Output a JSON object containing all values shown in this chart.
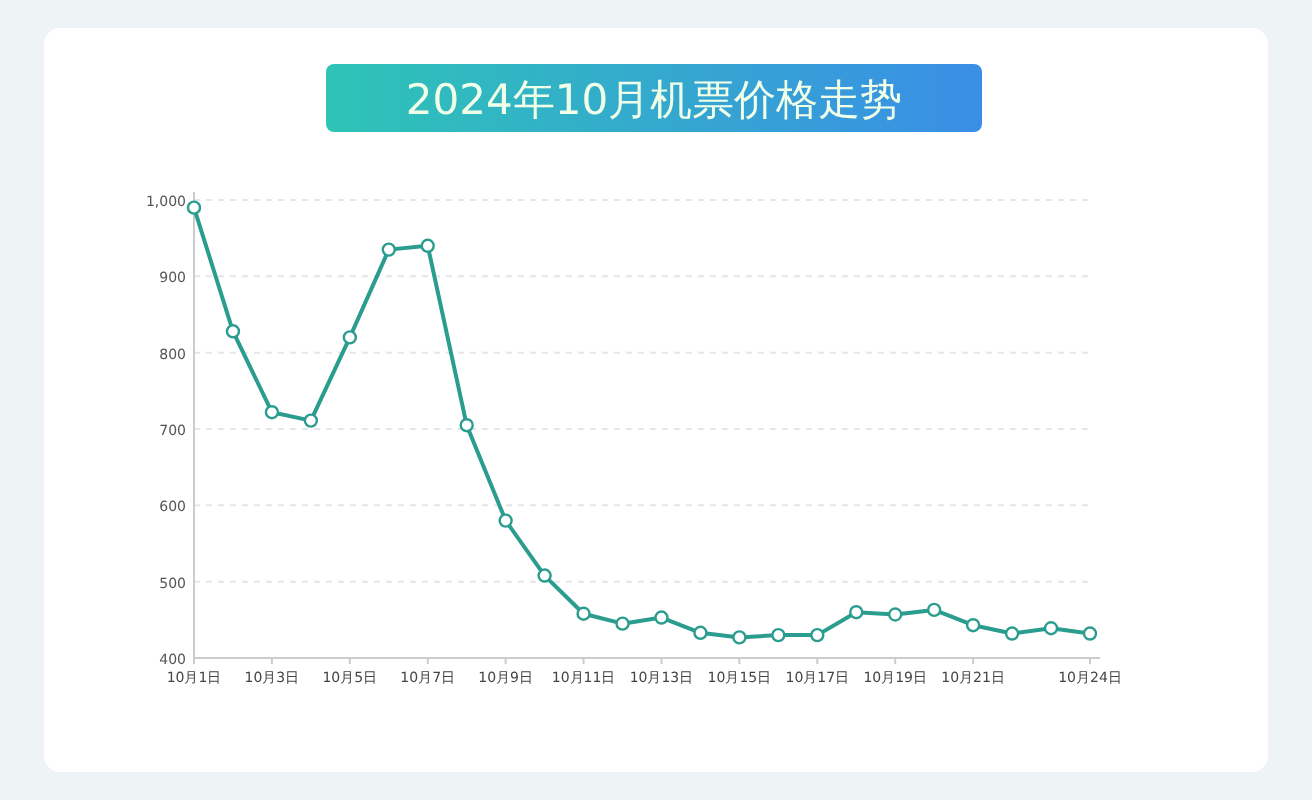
{
  "chart_data": {
    "type": "line",
    "title": "2024年10月机票价格走势",
    "categories": [
      "10月1日",
      null,
      "10月3日",
      null,
      "10月5日",
      null,
      "10月7日",
      null,
      "10月9日",
      null,
      "10月11日",
      null,
      "10月13日",
      null,
      "10月15日",
      null,
      "10月17日",
      null,
      "10月19日",
      null,
      "10月21日",
      null,
      null,
      "10月24日"
    ],
    "series": [
      {
        "color": "#2a9d8f",
        "values": [
          990,
          828,
          722,
          711,
          820,
          935,
          940,
          705,
          580,
          508,
          458,
          445,
          453,
          433,
          427,
          430,
          430,
          460,
          457,
          463,
          443,
          432,
          439,
          432
        ]
      }
    ],
    "ylim": [
      400,
      1000
    ],
    "yticks": [
      400,
      500,
      600,
      700,
      800,
      900,
      {
        "value": 1000,
        "label": "1,000"
      }
    ],
    "grid": "y",
    "marker": "circle",
    "line_style": "solid"
  }
}
